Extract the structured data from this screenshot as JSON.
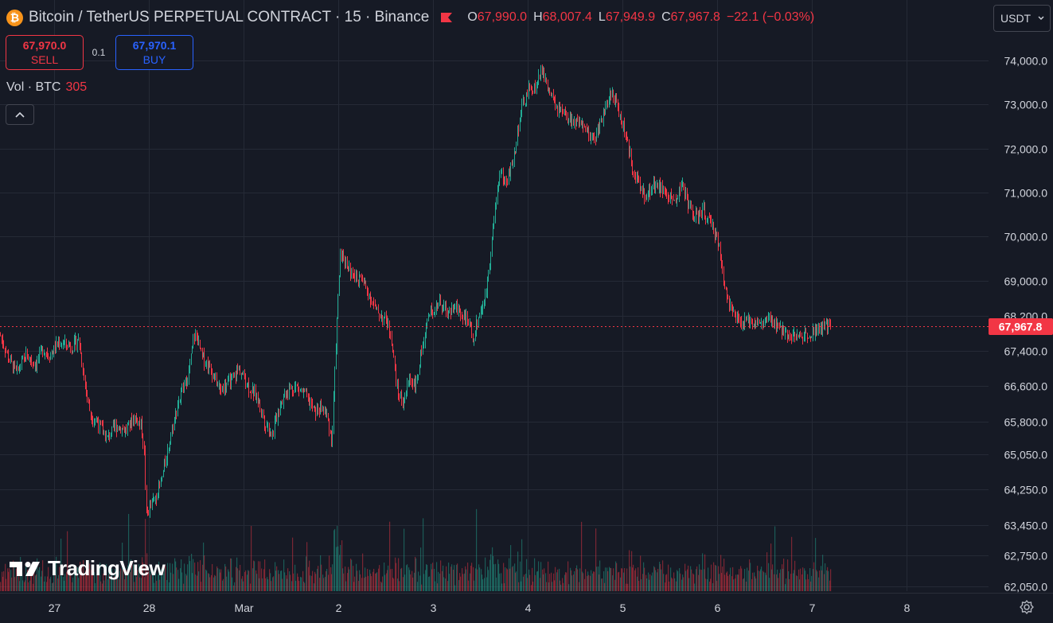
{
  "header": {
    "coin_symbol": "₿",
    "title": "Bitcoin / TetherUS PERPETUAL CONTRACT · 15 · Binance",
    "ohlc": {
      "o_label": "O",
      "o": "67,990.0",
      "h_label": "H",
      "h": "68,007.4",
      "l_label": "L",
      "l": "67,949.9",
      "c_label": "C",
      "c": "67,967.8",
      "change": "−22.1 (−0.03%)"
    }
  },
  "trade": {
    "sell_price": "67,970.0",
    "sell_label": "SELL",
    "spread": "0.1",
    "buy_price": "67,970.1",
    "buy_label": "BUY"
  },
  "volume": {
    "label": "Vol · BTC",
    "value": "305"
  },
  "currency_select": {
    "value": "USDT"
  },
  "logo": {
    "text": "TradingView"
  },
  "colors": {
    "up": "#22ab94",
    "down": "#f23645",
    "background": "#161a25",
    "grid": "#252a36",
    "accent": "#2962ff"
  },
  "chart_data": {
    "type": "candlestick",
    "ylim": [
      62050,
      74300
    ],
    "current_price": "67,967.8",
    "price_axis_labels": [
      {
        "label": "74,000.0",
        "value": 74000
      },
      {
        "label": "73,000.0",
        "value": 73000
      },
      {
        "label": "72,000.0",
        "value": 72000
      },
      {
        "label": "71,000.0",
        "value": 71000
      },
      {
        "label": "70,000.0",
        "value": 70000
      },
      {
        "label": "69,000.0",
        "value": 69000
      },
      {
        "label": "68,200.0",
        "value": 68200
      },
      {
        "label": "67,400.0",
        "value": 67400
      },
      {
        "label": "66,600.0",
        "value": 66600
      },
      {
        "label": "65,800.0",
        "value": 65800
      },
      {
        "label": "65,050.0",
        "value": 65050
      },
      {
        "label": "64,250.0",
        "value": 64250
      },
      {
        "label": "63,450.0",
        "value": 63450
      },
      {
        "label": "62,750.0",
        "value": 62750
      },
      {
        "label": "62,050.0",
        "value": 62050
      }
    ],
    "time_axis_labels": [
      {
        "label": "27",
        "value": -0.5
      },
      {
        "label": "28",
        "value": 0.5
      },
      {
        "label": "Mar",
        "value": 1.5
      },
      {
        "label": "2",
        "value": 2.5
      },
      {
        "label": "3",
        "value": 3.5
      },
      {
        "label": "4",
        "value": 4.5
      },
      {
        "label": "5",
        "value": 5.5
      },
      {
        "label": "6",
        "value": 6.5
      },
      {
        "label": "7",
        "value": 7.5
      },
      {
        "label": "8",
        "value": 8.5
      }
    ],
    "x_range": [
      -1.07,
      9.92
    ],
    "price_path": [
      [
        -1.07,
        67750
      ],
      [
        -0.98,
        67200
      ],
      [
        -0.9,
        66900
      ],
      [
        -0.8,
        67300
      ],
      [
        -0.7,
        67100
      ],
      [
        -0.62,
        67450
      ],
      [
        -0.55,
        67300
      ],
      [
        -0.45,
        67600
      ],
      [
        -0.3,
        67500
      ],
      [
        -0.25,
        67700
      ],
      [
        -0.22,
        67300
      ],
      [
        -0.18,
        66700
      ],
      [
        -0.12,
        65950
      ],
      [
        -0.05,
        65800
      ],
      [
        0.05,
        65400
      ],
      [
        0.15,
        65700
      ],
      [
        0.25,
        65600
      ],
      [
        0.35,
        65900
      ],
      [
        0.42,
        65700
      ],
      [
        0.45,
        65000
      ],
      [
        0.47,
        63700
      ],
      [
        0.55,
        64000
      ],
      [
        0.62,
        64350
      ],
      [
        0.7,
        65200
      ],
      [
        0.8,
        66200
      ],
      [
        0.92,
        66900
      ],
      [
        0.97,
        67700
      ],
      [
        1.0,
        67750
      ],
      [
        1.05,
        67300
      ],
      [
        1.15,
        67000
      ],
      [
        1.25,
        66500
      ],
      [
        1.35,
        66700
      ],
      [
        1.45,
        67000
      ],
      [
        1.55,
        66600
      ],
      [
        1.65,
        66300
      ],
      [
        1.72,
        65800
      ],
      [
        1.8,
        65500
      ],
      [
        1.88,
        66200
      ],
      [
        1.95,
        66500
      ],
      [
        2.05,
        66600
      ],
      [
        2.15,
        66400
      ],
      [
        2.25,
        66000
      ],
      [
        2.32,
        66100
      ],
      [
        2.38,
        65900
      ],
      [
        2.43,
        65300
      ],
      [
        2.47,
        67500
      ],
      [
        2.52,
        69700
      ],
      [
        2.58,
        69400
      ],
      [
        2.65,
        69100
      ],
      [
        2.75,
        69000
      ],
      [
        2.82,
        68700
      ],
      [
        2.9,
        68300
      ],
      [
        3.0,
        68100
      ],
      [
        3.05,
        67800
      ],
      [
        3.12,
        66500
      ],
      [
        3.18,
        66200
      ],
      [
        3.25,
        66800
      ],
      [
        3.32,
        66600
      ],
      [
        3.38,
        67500
      ],
      [
        3.45,
        68200
      ],
      [
        3.55,
        68500
      ],
      [
        3.65,
        68300
      ],
      [
        3.75,
        68400
      ],
      [
        3.85,
        68100
      ],
      [
        3.92,
        67700
      ],
      [
        3.98,
        68200
      ],
      [
        4.05,
        68600
      ],
      [
        4.12,
        70000
      ],
      [
        4.2,
        71500
      ],
      [
        4.27,
        71200
      ],
      [
        4.35,
        71800
      ],
      [
        4.42,
        72800
      ],
      [
        4.5,
        73300
      ],
      [
        4.58,
        73400
      ],
      [
        4.65,
        73800
      ],
      [
        4.72,
        73300
      ],
      [
        4.8,
        72900
      ],
      [
        4.9,
        72700
      ],
      [
        5.0,
        72600
      ],
      [
        5.1,
        72400
      ],
      [
        5.2,
        72200
      ],
      [
        5.3,
        72800
      ],
      [
        5.38,
        73300
      ],
      [
        5.45,
        72900
      ],
      [
        5.52,
        72400
      ],
      [
        5.6,
        71600
      ],
      [
        5.68,
        71100
      ],
      [
        5.75,
        70900
      ],
      [
        5.82,
        71200
      ],
      [
        5.9,
        71100
      ],
      [
        5.98,
        70900
      ],
      [
        6.05,
        70800
      ],
      [
        6.12,
        71200
      ],
      [
        6.2,
        70700
      ],
      [
        6.28,
        70400
      ],
      [
        6.35,
        70600
      ],
      [
        6.42,
        70300
      ],
      [
        6.5,
        70000
      ],
      [
        6.55,
        69200
      ],
      [
        6.6,
        68700
      ],
      [
        6.67,
        68200
      ],
      [
        6.75,
        68000
      ],
      [
        6.85,
        68100
      ],
      [
        6.95,
        68000
      ],
      [
        7.05,
        68100
      ],
      [
        7.15,
        67900
      ],
      [
        7.25,
        67800
      ],
      [
        7.35,
        67700
      ],
      [
        7.45,
        67800
      ],
      [
        7.55,
        67900
      ],
      [
        7.65,
        67950
      ],
      [
        7.7,
        67967.8
      ]
    ]
  }
}
